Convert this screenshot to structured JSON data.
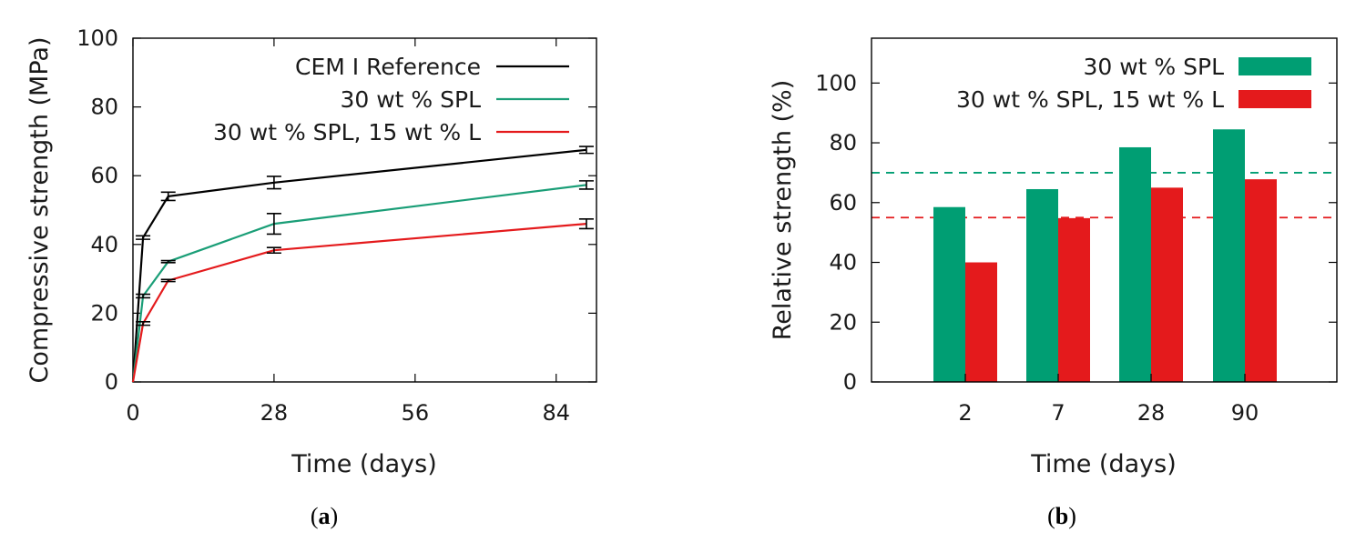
{
  "chart_data": [
    {
      "type": "line",
      "caption_open": "(",
      "caption_letter": "a",
      "caption_close": ")",
      "xlabel": "Time (days)",
      "ylabel": "Compressive strength (MPa)",
      "xlim": [
        0,
        92
      ],
      "ylim": [
        0,
        100
      ],
      "xticks": [
        0,
        28,
        56,
        84
      ],
      "yticks": [
        0,
        20,
        40,
        60,
        80,
        100
      ],
      "grid": false,
      "legend_position": "top-right",
      "series": [
        {
          "name": "CEM I Reference",
          "color": "#000000",
          "x": [
            0,
            2,
            7,
            28,
            90
          ],
          "y": [
            0,
            42,
            54,
            58,
            67.5
          ],
          "err": [
            0,
            0.5,
            1.2,
            1.8,
            1.0
          ]
        },
        {
          "name": "30 wt % SPL",
          "color": "#1a9e77",
          "x": [
            0,
            2,
            7,
            28,
            90
          ],
          "y": [
            0,
            25,
            35,
            46,
            57.3
          ],
          "err": [
            0,
            0.5,
            0.3,
            3.0,
            1.2
          ]
        },
        {
          "name": "30 wt % SPL, 15 wt % L",
          "color": "#e41a1c",
          "x": [
            0,
            2,
            7,
            28,
            90
          ],
          "y": [
            0,
            17,
            29.5,
            38.3,
            46
          ],
          "err": [
            0,
            0.5,
            0.3,
            0.8,
            1.4
          ]
        }
      ]
    },
    {
      "type": "bar",
      "caption_open": "(",
      "caption_letter": "b",
      "caption_close": ")",
      "xlabel": "Time (days)",
      "ylabel": "Relative strength (%)",
      "categories": [
        "2",
        "7",
        "28",
        "90"
      ],
      "ylim": [
        0,
        115
      ],
      "yticks": [
        0,
        20,
        40,
        60,
        80,
        100
      ],
      "grid": false,
      "legend_position": "top-right",
      "series": [
        {
          "name": "30 wt % SPL",
          "color": "#009e73",
          "values": [
            58.5,
            64.5,
            78.5,
            84.5
          ]
        },
        {
          "name": "30 wt % SPL, 15 wt % L",
          "color": "#e41a1c",
          "values": [
            40,
            54.8,
            65,
            67.8
          ]
        }
      ],
      "reference_lines": [
        {
          "y": 70,
          "color": "#009e73"
        },
        {
          "y": 55,
          "color": "#e41a1c"
        }
      ]
    }
  ]
}
